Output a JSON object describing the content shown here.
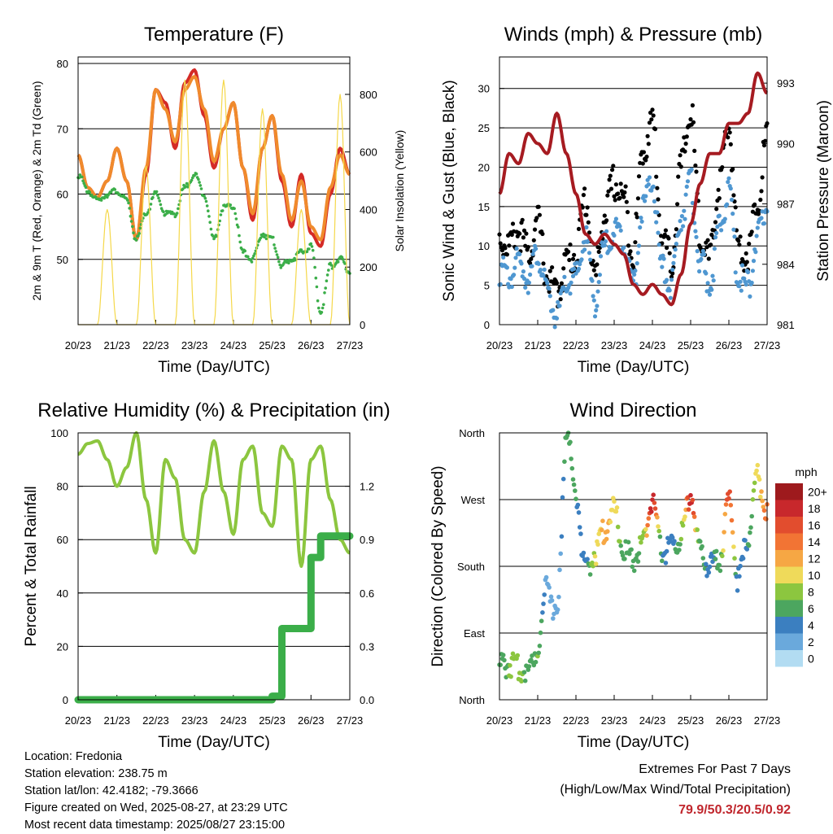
{
  "time_axis": {
    "title": "Time (Day/UTC)",
    "ticks": [
      "20/23",
      "21/23",
      "22/23",
      "23/23",
      "24/23",
      "25/23",
      "26/23",
      "27/23"
    ],
    "range_days": [
      0,
      7
    ]
  },
  "chart_data": [
    {
      "type": "line",
      "title": "Temperature (F)",
      "ylabel": "2m & 9m T (Red, Orange) & 2m Td (Green)",
      "y2label": "Solar Insolation (Yellow)",
      "ylim": [
        40,
        81
      ],
      "y2lim": [
        0,
        930
      ],
      "yticks": [
        50,
        60,
        70,
        80
      ],
      "y2ticks": [
        0,
        200,
        400,
        600,
        800
      ],
      "x": [
        0,
        0.25,
        0.5,
        0.75,
        1.0,
        1.25,
        1.5,
        1.75,
        2.0,
        2.25,
        2.5,
        2.75,
        3.0,
        3.25,
        3.5,
        3.75,
        4.0,
        4.25,
        4.5,
        4.75,
        5.0,
        5.25,
        5.5,
        5.75,
        6.0,
        6.25,
        6.5,
        6.75,
        7.0
      ],
      "series": [
        {
          "name": "2m T",
          "color": "#d42a26",
          "axis": "left",
          "style": "line",
          "values": [
            66,
            61,
            59.5,
            62,
            67,
            62,
            53,
            63,
            76,
            74,
            67,
            77,
            79,
            72,
            64,
            70,
            74,
            64,
            56,
            67,
            72,
            62,
            55,
            63,
            54,
            52,
            60,
            67,
            63
          ]
        },
        {
          "name": "9m T",
          "color": "#f08a2c",
          "axis": "left",
          "style": "line",
          "values": [
            66,
            61,
            59.5,
            62,
            67,
            62,
            53,
            64,
            76,
            73,
            68,
            76,
            78,
            73,
            65,
            70,
            74,
            64,
            57,
            67,
            72,
            63,
            56,
            62,
            55,
            53,
            61,
            66,
            63
          ]
        },
        {
          "name": "2m Td",
          "color": "#3bae49",
          "axis": "left",
          "style": "dots",
          "values": [
            63,
            60.5,
            59,
            60,
            60.5,
            59,
            53,
            57,
            60,
            57,
            57,
            61,
            63,
            60,
            53,
            58,
            58,
            51,
            50,
            54,
            53,
            49,
            50,
            51,
            52,
            42,
            49,
            50,
            48
          ]
        },
        {
          "name": "Solar Insolation",
          "color": "#f5d84a",
          "axis": "right",
          "style": "line",
          "values": [
            0,
            0,
            0,
            400,
            0,
            0,
            0,
            550,
            0,
            0,
            0,
            850,
            0,
            0,
            0,
            850,
            0,
            0,
            0,
            750,
            0,
            0,
            0,
            400,
            0,
            0,
            0,
            800,
            0
          ]
        }
      ]
    },
    {
      "type": "scatter",
      "title": "Winds (mph) & Pressure (mb)",
      "ylabel": "Sonic Wind & Gust (Blue, Black)",
      "y2label": "Station Pressure (Maroon)",
      "ylim": [
        0,
        34
      ],
      "y2lim": [
        981,
        994.3
      ],
      "yticks": [
        0,
        5,
        10,
        15,
        20,
        25,
        30
      ],
      "y2ticks": [
        981,
        984,
        987,
        990,
        993
      ],
      "x": [
        0,
        0.25,
        0.5,
        0.75,
        1.0,
        1.25,
        1.5,
        1.75,
        2.0,
        2.25,
        2.5,
        2.75,
        3.0,
        3.25,
        3.5,
        3.75,
        4.0,
        4.25,
        4.5,
        4.75,
        5.0,
        5.25,
        5.5,
        5.75,
        6.0,
        6.25,
        6.5,
        6.75,
        7.0
      ],
      "series": [
        {
          "name": "Gust",
          "color": "#000000",
          "axis": "left",
          "style": "dots",
          "values": [
            11,
            10,
            12,
            9,
            13,
            6,
            4,
            8,
            9,
            16,
            6,
            14,
            18,
            16,
            9,
            22,
            26,
            11,
            8,
            20,
            27,
            12,
            8,
            18,
            25,
            10,
            9,
            16,
            24
          ]
        },
        {
          "name": "Wind",
          "color": "#4f97d1",
          "axis": "left",
          "style": "dots",
          "values": [
            7,
            6,
            8,
            6,
            9,
            4,
            1,
            5,
            6,
            11,
            3,
            10,
            12,
            11,
            5,
            15,
            18,
            7,
            5,
            14,
            18,
            8,
            5,
            12,
            17,
            6,
            5,
            11,
            15
          ]
        },
        {
          "name": "Station Pressure",
          "color": "#a61b21",
          "axis": "right",
          "style": "line",
          "values": [
            987.5,
            989.5,
            989,
            990.5,
            990,
            989.5,
            991.5,
            989.5,
            987.5,
            985.5,
            985,
            985.5,
            985,
            984.5,
            983,
            982.5,
            983,
            982.5,
            982,
            983.5,
            986,
            988,
            989.5,
            989.5,
            991,
            991,
            991.5,
            993.5,
            992.5
          ]
        }
      ]
    },
    {
      "type": "line",
      "title": "Relative Humidity (%) & Precipitation (in)",
      "ylabel": "Percent & Total Rainfall",
      "ylim": [
        0,
        100
      ],
      "y2lim": [
        0,
        1.5
      ],
      "yticks": [
        0,
        20,
        40,
        60,
        80,
        100
      ],
      "y2ticks": [
        0.0,
        0.3,
        0.6,
        0.9,
        1.2
      ],
      "x": [
        0,
        0.25,
        0.5,
        0.75,
        1.0,
        1.25,
        1.5,
        1.75,
        2.0,
        2.25,
        2.5,
        2.75,
        3.0,
        3.25,
        3.5,
        3.75,
        4.0,
        4.25,
        4.5,
        4.75,
        5.0,
        5.25,
        5.5,
        5.75,
        6.0,
        6.25,
        6.5,
        6.75,
        7.0
      ],
      "series": [
        {
          "name": "Relative Humidity",
          "color": "#8cc63f",
          "axis": "left",
          "style": "line",
          "values": [
            92,
            96,
            97,
            90,
            80,
            87,
            100,
            75,
            55,
            90,
            83,
            60,
            55,
            78,
            97,
            78,
            62,
            90,
            95,
            70,
            65,
            95,
            90,
            50,
            90,
            95,
            75,
            60,
            55
          ]
        },
        {
          "name": "Total Precipitation",
          "color": "#3bae49",
          "axis": "right",
          "style": "steps",
          "values": [
            0,
            0,
            0,
            0,
            0,
            0,
            0,
            0,
            0,
            0,
            0,
            0,
            0,
            0,
            0,
            0,
            0,
            0,
            0,
            0,
            0.02,
            0.4,
            0.4,
            0.4,
            0.8,
            0.92,
            0.92,
            0.92,
            0.92
          ]
        }
      ]
    },
    {
      "type": "scatter",
      "title": "Wind Direction",
      "ylabel": "Direction (Colored By Speed)",
      "yticks": [
        "North",
        "East",
        "South",
        "West",
        "North"
      ],
      "ylim": [
        0,
        360
      ],
      "x": [
        0,
        0.25,
        0.5,
        0.75,
        1.0,
        1.25,
        1.5,
        1.75,
        2.0,
        2.25,
        2.5,
        2.75,
        3.0,
        3.25,
        3.5,
        3.75,
        4.0,
        4.25,
        4.5,
        4.75,
        5.0,
        5.25,
        5.5,
        5.75,
        6.0,
        6.25,
        6.5,
        6.75,
        7.0
      ],
      "direction": [
        45,
        48,
        42,
        40,
        70,
        160,
        110,
        360,
        280,
        170,
        200,
        230,
        255,
        200,
        190,
        210,
        270,
        200,
        205,
        220,
        280,
        200,
        180,
        190,
        270,
        160,
        220,
        300,
        250
      ],
      "speed": [
        6,
        7,
        8,
        6,
        7,
        2,
        1,
        6,
        5,
        4,
        9,
        12,
        10,
        6,
        5,
        8,
        18,
        5,
        4,
        7,
        18,
        6,
        4,
        6,
        16,
        3,
        5,
        10,
        14
      ],
      "legend": {
        "title": "mph",
        "labels": [
          "20+",
          "18",
          "16",
          "14",
          "12",
          "10",
          "8",
          "6",
          "4",
          "2",
          "0"
        ],
        "colors": [
          "#9e1a1d",
          "#c8282c",
          "#e24d2e",
          "#f27434",
          "#f6a744",
          "#efda5a",
          "#8cc63f",
          "#4ca65f",
          "#3b7fc0",
          "#6aa9dc",
          "#b2dcf2"
        ]
      }
    }
  ],
  "footer": {
    "location": "Location: Fredonia",
    "elevation": "Station elevation: 238.75 m",
    "latlon": "Station lat/lon: 42.4182; -79.3666",
    "created": "Figure created on Wed, 2025-08-27, at 23:29 UTC",
    "timestamp": "Most recent data timestamp: 2025/08/27 23:15:00",
    "extremes_title": "Extremes For Past 7 Days",
    "extremes_desc": "(High/Low/Max Wind/Total Precipitation)",
    "extremes_values": "79.9/50.3/20.5/0.92"
  }
}
